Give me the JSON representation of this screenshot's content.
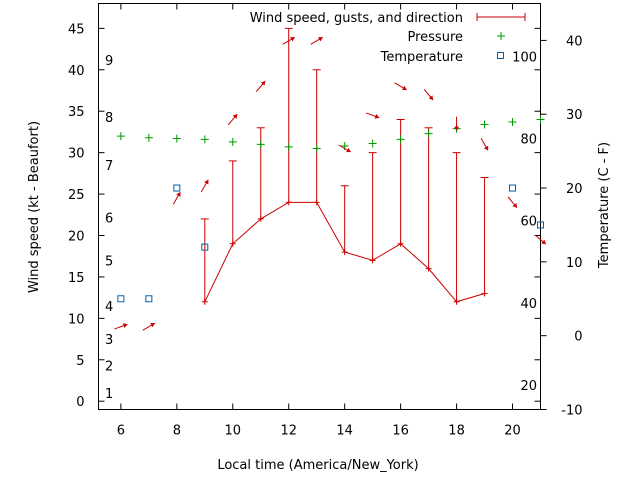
{
  "chart_data": {
    "type": "line",
    "xlabel": "Local time (America/New_York)",
    "ylabel": "Wind speed (kt - Beaufort)",
    "y2label": "Temperature (C - F)",
    "xlim": [
      5.2,
      21.0
    ],
    "ylim": [
      -1,
      48
    ],
    "y2lim": [
      -10,
      45
    ],
    "x_ticks": [
      "6",
      "8",
      "10",
      "12",
      "14",
      "16",
      "18",
      "20"
    ],
    "x_tick_values": [
      6,
      8,
      10,
      12,
      14,
      16,
      18,
      20
    ],
    "y_ticks": [
      "0",
      "5",
      "10",
      "15",
      "20",
      "25",
      "30",
      "35",
      "40",
      "45"
    ],
    "y_tick_values": [
      0,
      5,
      10,
      15,
      20,
      25,
      30,
      35,
      40,
      45
    ],
    "y2_ticks": [
      "-10",
      "0",
      "10",
      "20",
      "30",
      "40"
    ],
    "y2_tick_values": [
      -10,
      0,
      10,
      20,
      30,
      40
    ],
    "beaufort_labels": [
      {
        "label": "1",
        "y": 1
      },
      {
        "label": "2",
        "y": 4.3
      },
      {
        "label": "3",
        "y": 7.5
      },
      {
        "label": "4",
        "y": 11.5
      },
      {
        "label": "5",
        "y": 17
      },
      {
        "label": "6",
        "y": 22.2
      },
      {
        "label": "7",
        "y": 28.5
      },
      {
        "label": "8",
        "y": 34.3
      },
      {
        "label": "9",
        "y": 41.2
      }
    ],
    "fahrenheit_labels": [
      {
        "label": "20",
        "y2": -6.7
      },
      {
        "label": "40",
        "y2": 4.4
      },
      {
        "label": "60",
        "y2": 15.6
      },
      {
        "label": "80",
        "y2": 26.7
      },
      {
        "label": "100",
        "y2": 37.8
      }
    ],
    "legend_position": "top-right",
    "series": [
      {
        "name": "Wind speed, gusts, and direction",
        "color": "#cc0000",
        "x": [
          9,
          10,
          11,
          12,
          13,
          14,
          15,
          16,
          17,
          18,
          19
        ],
        "wind": [
          12,
          19,
          22,
          24,
          24,
          18,
          17,
          19,
          16,
          12,
          13
        ],
        "gust": [
          22,
          29,
          33,
          45,
          40,
          26,
          30,
          34,
          33,
          30,
          27
        ]
      },
      {
        "name": "Pressure",
        "color": "#009900",
        "x": [
          6,
          7,
          8,
          9,
          10,
          11,
          12,
          13,
          14,
          15,
          16,
          17,
          18,
          19,
          20,
          21
        ],
        "values": [
          32,
          31.8,
          31.7,
          31.6,
          31.3,
          31,
          30.7,
          30.5,
          30.8,
          31.1,
          31.6,
          32.3,
          32.9,
          33.4,
          33.7,
          34
        ]
      },
      {
        "name": "Temperature",
        "color": "#0060ad",
        "x": [
          6,
          7,
          8,
          9,
          20,
          21
        ],
        "values": [
          5,
          5,
          20,
          12,
          20,
          15
        ]
      }
    ],
    "direction_arrows": {
      "color": "#cc0000",
      "x": [
        6,
        7,
        8,
        9,
        10,
        11,
        12,
        13,
        14,
        15,
        16,
        17,
        18,
        19,
        20,
        21
      ],
      "y": [
        9,
        9,
        24.5,
        26,
        34,
        38,
        43.5,
        43.5,
        30.5,
        34.5,
        38,
        37,
        33.5,
        31,
        24,
        19.5
      ],
      "dir": [
        250,
        240,
        210,
        210,
        220,
        220,
        240,
        240,
        300,
        290,
        300,
        320,
        0,
        330,
        320,
        310
      ]
    }
  }
}
